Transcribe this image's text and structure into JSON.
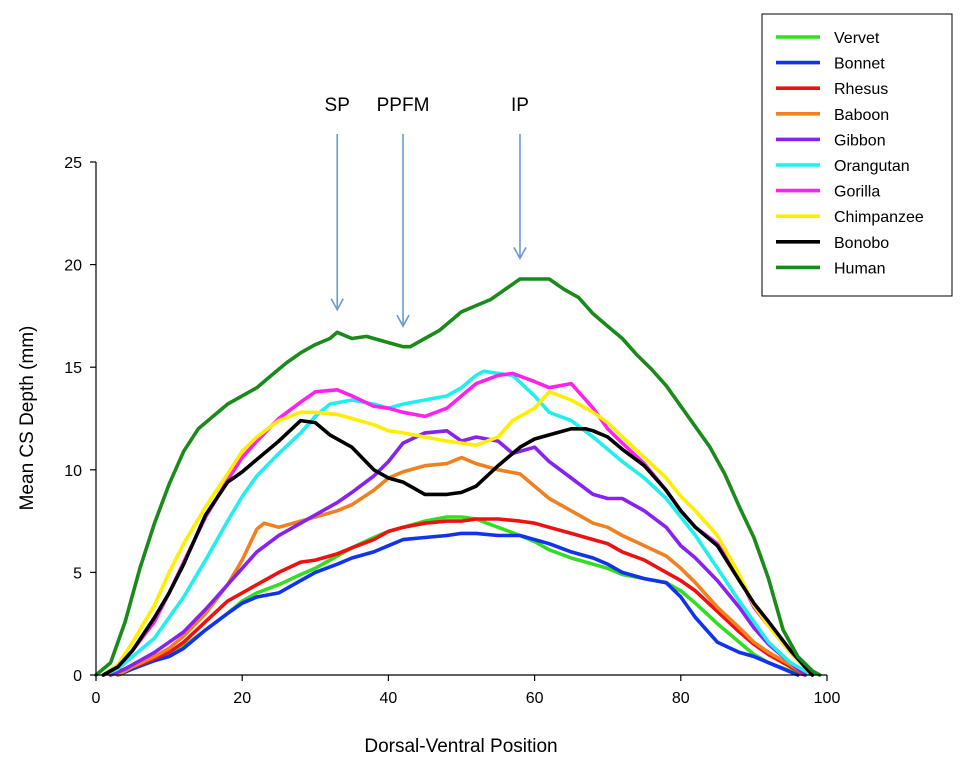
{
  "chart_data": {
    "type": "line",
    "title": "",
    "xlabel": "Dorsal-Ventral Position",
    "ylabel": "Mean CS Depth (mm)",
    "xlim": [
      0,
      100
    ],
    "ylim": [
      0,
      25
    ],
    "xticks": [
      "0",
      "20",
      "40",
      "60",
      "80",
      "100"
    ],
    "yticks": [
      "0",
      "5",
      "10",
      "15",
      "20",
      "25"
    ],
    "grid": false,
    "legend_position": "top-right",
    "annotations": [
      {
        "label": "SP",
        "x": 33,
        "y": 17.8
      },
      {
        "label": "PPFM",
        "x": 42,
        "y": 17.0
      },
      {
        "label": "IP",
        "x": 58,
        "y": 20.3
      }
    ],
    "series": [
      {
        "name": "Vervet",
        "color": "#33dd22",
        "x": [
          3,
          5,
          8,
          10,
          12,
          15,
          18,
          20,
          22,
          25,
          28,
          30,
          33,
          35,
          38,
          40,
          42,
          45,
          48,
          50,
          52,
          55,
          58,
          60,
          62,
          65,
          68,
          70,
          72,
          75,
          78,
          80,
          82,
          85,
          88,
          90,
          92,
          95,
          97
        ],
        "y": [
          0,
          0.3,
          0.7,
          1.0,
          1.4,
          2.2,
          3.0,
          3.6,
          4.0,
          4.4,
          4.9,
          5.2,
          5.8,
          6.2,
          6.7,
          7.0,
          7.2,
          7.5,
          7.7,
          7.7,
          7.6,
          7.2,
          6.8,
          6.5,
          6.1,
          5.7,
          5.4,
          5.2,
          4.9,
          4.7,
          4.5,
          4.1,
          3.5,
          2.5,
          1.6,
          1.0,
          0.6,
          0.2,
          0
        ]
      },
      {
        "name": "Bonnet",
        "color": "#1133ee",
        "x": [
          3,
          5,
          8,
          10,
          12,
          15,
          18,
          20,
          22,
          25,
          28,
          30,
          33,
          35,
          38,
          40,
          42,
          45,
          48,
          50,
          52,
          55,
          58,
          60,
          62,
          65,
          68,
          70,
          72,
          75,
          78,
          80,
          82,
          85,
          88,
          90,
          92,
          94,
          96
        ],
        "y": [
          0,
          0.3,
          0.7,
          0.9,
          1.3,
          2.2,
          3.0,
          3.5,
          3.8,
          4.0,
          4.6,
          5.0,
          5.4,
          5.7,
          6.0,
          6.3,
          6.6,
          6.7,
          6.8,
          6.9,
          6.9,
          6.8,
          6.8,
          6.6,
          6.4,
          6.0,
          5.7,
          5.4,
          5.0,
          4.7,
          4.5,
          3.8,
          2.8,
          1.6,
          1.1,
          0.9,
          0.6,
          0.3,
          0
        ]
      },
      {
        "name": "Rhesus",
        "color": "#ee1111",
        "x": [
          2,
          4,
          6,
          8,
          10,
          12,
          15,
          18,
          20,
          22,
          25,
          28,
          30,
          33,
          35,
          38,
          40,
          42,
          45,
          48,
          50,
          52,
          55,
          58,
          60,
          62,
          65,
          68,
          70,
          72,
          75,
          78,
          80,
          82,
          85,
          88,
          90,
          92,
          95,
          97
        ],
        "y": [
          0,
          0.3,
          0.5,
          0.8,
          1.1,
          1.6,
          2.6,
          3.6,
          4.0,
          4.4,
          5.0,
          5.5,
          5.6,
          5.9,
          6.2,
          6.6,
          7.0,
          7.2,
          7.4,
          7.5,
          7.5,
          7.6,
          7.6,
          7.5,
          7.4,
          7.2,
          6.9,
          6.6,
          6.4,
          6.0,
          5.6,
          5.0,
          4.6,
          4.1,
          3.1,
          2.1,
          1.5,
          1.0,
          0.4,
          0
        ]
      },
      {
        "name": "Baboon",
        "color": "#f08020",
        "x": [
          3,
          5,
          8,
          10,
          12,
          15,
          18,
          20,
          22,
          23,
          25,
          28,
          30,
          33,
          35,
          38,
          40,
          42,
          45,
          48,
          50,
          52,
          55,
          58,
          60,
          62,
          65,
          68,
          70,
          72,
          75,
          78,
          80,
          82,
          85,
          88,
          90,
          92,
          95,
          97
        ],
        "y": [
          0,
          0.4,
          0.9,
          1.3,
          1.9,
          3.0,
          4.4,
          5.6,
          7.1,
          7.4,
          7.2,
          7.5,
          7.7,
          8.0,
          8.3,
          9.0,
          9.6,
          9.9,
          10.2,
          10.3,
          10.6,
          10.3,
          10.0,
          9.8,
          9.2,
          8.6,
          8.0,
          7.4,
          7.2,
          6.8,
          6.3,
          5.8,
          5.2,
          4.5,
          3.3,
          2.3,
          1.6,
          1.1,
          0.5,
          0
        ]
      },
      {
        "name": "Gibbon",
        "color": "#8822ee",
        "x": [
          2,
          4,
          6,
          8,
          10,
          12,
          15,
          18,
          20,
          22,
          25,
          28,
          30,
          33,
          35,
          38,
          40,
          42,
          45,
          48,
          50,
          52,
          55,
          57,
          60,
          62,
          65,
          68,
          70,
          72,
          75,
          78,
          80,
          82,
          85,
          88,
          90,
          92,
          95,
          97
        ],
        "y": [
          0,
          0.3,
          0.7,
          1.1,
          1.6,
          2.1,
          3.2,
          4.4,
          5.2,
          6.0,
          6.8,
          7.4,
          7.8,
          8.4,
          8.9,
          9.7,
          10.4,
          11.3,
          11.8,
          11.9,
          11.4,
          11.6,
          11.4,
          10.8,
          11.1,
          10.4,
          9.6,
          8.8,
          8.6,
          8.6,
          8.0,
          7.2,
          6.3,
          5.7,
          4.6,
          3.3,
          2.3,
          1.5,
          0.6,
          0
        ]
      },
      {
        "name": "Orangutan",
        "color": "#22eeee",
        "x": [
          1,
          3,
          5,
          8,
          10,
          12,
          15,
          18,
          20,
          22,
          25,
          28,
          30,
          32,
          35,
          38,
          40,
          42,
          45,
          48,
          50,
          52,
          53,
          55,
          57,
          60,
          62,
          65,
          68,
          70,
          72,
          75,
          78,
          80,
          82,
          85,
          88,
          90,
          92,
          95,
          98
        ],
        "y": [
          0,
          0.3,
          0.9,
          1.8,
          2.8,
          3.8,
          5.6,
          7.5,
          8.7,
          9.7,
          10.8,
          11.8,
          12.6,
          13.2,
          13.4,
          13.2,
          13.0,
          13.2,
          13.4,
          13.6,
          14.0,
          14.6,
          14.8,
          14.7,
          14.6,
          13.6,
          12.8,
          12.4,
          11.6,
          11.0,
          10.4,
          9.6,
          8.6,
          7.7,
          6.8,
          5.2,
          3.6,
          2.6,
          1.6,
          0.6,
          0
        ]
      },
      {
        "name": "Gorilla",
        "color": "#ff22ee",
        "x": [
          1,
          3,
          5,
          8,
          10,
          12,
          15,
          18,
          20,
          22,
          25,
          28,
          30,
          33,
          35,
          38,
          40,
          42,
          45,
          48,
          50,
          52,
          55,
          57,
          60,
          62,
          65,
          68,
          70,
          72,
          75,
          78,
          80,
          82,
          85,
          88,
          90,
          92,
          95,
          98
        ],
        "y": [
          0,
          0.4,
          1.2,
          2.6,
          4.0,
          5.5,
          7.7,
          9.5,
          10.6,
          11.4,
          12.5,
          13.3,
          13.8,
          13.9,
          13.6,
          13.1,
          13.0,
          12.8,
          12.6,
          13.0,
          13.6,
          14.2,
          14.6,
          14.7,
          14.3,
          14.0,
          14.2,
          13.0,
          12.0,
          11.3,
          10.3,
          9.0,
          8.0,
          7.2,
          6.4,
          4.8,
          3.3,
          2.4,
          1.1,
          0
        ]
      },
      {
        "name": "Chimpanzee",
        "color": "#ffee00",
        "x": [
          1,
          3,
          5,
          8,
          10,
          12,
          15,
          18,
          20,
          22,
          25,
          28,
          30,
          33,
          35,
          38,
          40,
          42,
          45,
          48,
          50,
          52,
          55,
          57,
          60,
          62,
          65,
          68,
          70,
          72,
          75,
          78,
          80,
          82,
          85,
          88,
          90,
          92,
          95,
          98
        ],
        "y": [
          0,
          0.5,
          1.6,
          3.4,
          5.0,
          6.4,
          8.2,
          9.8,
          10.9,
          11.6,
          12.4,
          12.8,
          12.8,
          12.7,
          12.5,
          12.2,
          11.9,
          11.8,
          11.6,
          11.4,
          11.3,
          11.2,
          11.6,
          12.4,
          13.0,
          13.8,
          13.4,
          12.8,
          12.3,
          11.6,
          10.6,
          9.6,
          8.7,
          8.0,
          6.8,
          4.9,
          3.4,
          2.4,
          1.1,
          0
        ]
      },
      {
        "name": "Bonobo",
        "color": "#000000",
        "x": [
          1,
          3,
          5,
          8,
          10,
          12,
          15,
          18,
          20,
          22,
          25,
          28,
          30,
          32,
          35,
          38,
          40,
          42,
          45,
          48,
          50,
          52,
          55,
          58,
          60,
          62,
          65,
          67,
          68,
          70,
          72,
          75,
          78,
          80,
          82,
          85,
          88,
          90,
          92,
          95,
          98
        ],
        "y": [
          0,
          0.4,
          1.2,
          2.8,
          4.0,
          5.4,
          7.8,
          9.4,
          9.9,
          10.5,
          11.4,
          12.4,
          12.3,
          11.7,
          11.1,
          10.0,
          9.6,
          9.4,
          8.8,
          8.8,
          8.9,
          9.2,
          10.2,
          11.1,
          11.5,
          11.7,
          12.0,
          12.0,
          11.9,
          11.6,
          11.0,
          10.2,
          9.0,
          8.0,
          7.2,
          6.3,
          4.6,
          3.5,
          2.6,
          1.2,
          0
        ]
      },
      {
        "name": "Human",
        "color": "#1a8a1a",
        "x": [
          0,
          2,
          4,
          6,
          8,
          10,
          12,
          14,
          16,
          18,
          20,
          22,
          24,
          26,
          28,
          30,
          32,
          33,
          35,
          37,
          38,
          40,
          42,
          43,
          45,
          47,
          49,
          50,
          52,
          54,
          56,
          58,
          60,
          62,
          64,
          66,
          68,
          70,
          72,
          74,
          76,
          78,
          80,
          82,
          84,
          86,
          88,
          90,
          92,
          94,
          96,
          98,
          99
        ],
        "y": [
          0,
          0.6,
          2.6,
          5.2,
          7.4,
          9.3,
          10.9,
          12.0,
          12.6,
          13.2,
          13.6,
          14.0,
          14.6,
          15.2,
          15.7,
          16.1,
          16.4,
          16.7,
          16.4,
          16.5,
          16.4,
          16.2,
          16.0,
          16.0,
          16.4,
          16.8,
          17.4,
          17.7,
          18.0,
          18.3,
          18.8,
          19.3,
          19.3,
          19.3,
          18.8,
          18.4,
          17.6,
          17.0,
          16.4,
          15.6,
          14.9,
          14.1,
          13.1,
          12.1,
          11.1,
          9.8,
          8.2,
          6.7,
          4.7,
          2.2,
          0.9,
          0.2,
          0
        ]
      }
    ]
  }
}
